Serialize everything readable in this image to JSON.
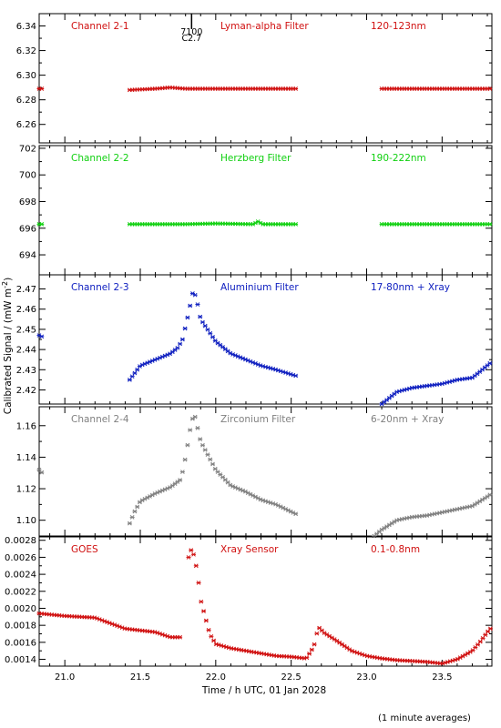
{
  "chart_data": {
    "type": "scatter",
    "ylabel": "Calibrated Signal / (mW m",
    "ylabel_sup": "-2",
    "ylabel_close": ")",
    "xlabel": "Time / h UTC, 01 Jan 2028",
    "footnote": "(1 minute averages)",
    "xlim": [
      20.83,
      23.83
    ],
    "xticks": [
      21.0,
      21.5,
      22.0,
      22.5,
      23.0,
      23.5
    ],
    "xtick_labels": [
      "21.0",
      "21.5",
      "22.0",
      "22.5",
      "23.0",
      "23.5"
    ],
    "flare_marker": {
      "x": 21.84,
      "label_top": "7100",
      "label_bottom": "C2.7"
    },
    "panels": [
      {
        "channel": "Channel 2-1",
        "filter": "Lyman-alpha Filter",
        "band": "120-123nm",
        "color": "#d01010",
        "ylim": [
          6.245,
          6.35
        ],
        "yticks": [
          6.26,
          6.28,
          6.3,
          6.32,
          6.34
        ],
        "ytick_labels": [
          "6.26",
          "6.28",
          "6.30",
          "6.32",
          "6.34"
        ],
        "segments": [
          {
            "x": [
              20.83,
              20.86
            ],
            "y": [
              6.289,
              6.289
            ]
          },
          {
            "x": [
              21.43,
              21.6,
              21.7,
              21.8,
              22.0,
              22.2,
              22.53
            ],
            "y": [
              6.288,
              6.289,
              6.29,
              6.289,
              6.289,
              6.289,
              6.289
            ]
          },
          {
            "x": [
              23.1,
              23.4,
              23.83
            ],
            "y": [
              6.289,
              6.289,
              6.289
            ]
          }
        ]
      },
      {
        "channel": "Channel 2-2",
        "filter": "Herzberg Filter",
        "band": "190-222nm",
        "color": "#10d010",
        "ylim": [
          692.5,
          702.2
        ],
        "yticks": [
          694,
          696,
          698,
          700,
          702
        ],
        "ytick_labels": [
          "694",
          "696",
          "698",
          "700",
          "702"
        ],
        "segments": [
          {
            "x": [
              20.83,
              20.86
            ],
            "y": [
              696.3,
              696.3
            ]
          },
          {
            "x": [
              21.43,
              21.8,
              22.0,
              22.25,
              22.28,
              22.31,
              22.53
            ],
            "y": [
              696.3,
              696.3,
              696.35,
              696.3,
              696.5,
              696.3,
              696.3
            ]
          },
          {
            "x": [
              23.1,
              23.5,
              23.83
            ],
            "y": [
              696.3,
              696.3,
              696.3
            ]
          }
        ]
      },
      {
        "channel": "Channel 2-3",
        "filter": "Aluminium Filter",
        "band": "17-80nm + Xray",
        "color": "#1020c0",
        "ylim": [
          2.413,
          2.477
        ],
        "yticks": [
          2.42,
          2.43,
          2.44,
          2.45,
          2.46,
          2.47
        ],
        "ytick_labels": [
          "2.42",
          "2.43",
          "2.44",
          "2.45",
          "2.46",
          "2.47"
        ],
        "segments": [
          {
            "x": [
              20.83,
              20.86
            ],
            "y": [
              2.447,
              2.446
            ]
          },
          {
            "x": [
              21.43,
              21.46,
              21.5,
              21.6,
              21.7,
              21.75,
              21.78,
              21.82,
              21.85,
              21.87,
              21.9,
              22.0,
              22.1,
              22.2,
              22.3,
              22.4,
              22.53
            ],
            "y": [
              2.425,
              2.428,
              2.432,
              2.435,
              2.438,
              2.441,
              2.445,
              2.458,
              2.469,
              2.466,
              2.455,
              2.444,
              2.438,
              2.435,
              2.432,
              2.43,
              2.427
            ]
          },
          {
            "x": [
              23.1,
              23.15,
              23.2,
              23.3,
              23.4,
              23.5,
              23.6,
              23.7,
              23.75,
              23.83
            ],
            "y": [
              2.413,
              2.416,
              2.419,
              2.421,
              2.422,
              2.423,
              2.425,
              2.426,
              2.429,
              2.434
            ]
          }
        ]
      },
      {
        "channel": "Channel 2-4",
        "filter": "Zirconium Filter",
        "band": "6-20nm + Xray",
        "color": "#808080",
        "ylim": [
          1.09,
          1.172
        ],
        "yticks": [
          1.1,
          1.12,
          1.14,
          1.16
        ],
        "ytick_labels": [
          "1.10",
          "1.12",
          "1.14",
          "1.16"
        ],
        "segments": [
          {
            "x": [
              20.83,
              20.86
            ],
            "y": [
              1.132,
              1.129
            ]
          },
          {
            "x": [
              21.43,
              21.46,
              21.5,
              21.6,
              21.7,
              21.77,
              21.8,
              21.84,
              21.86,
              21.9,
              22.0,
              22.1,
              22.2,
              22.3,
              22.4,
              22.53
            ],
            "y": [
              1.098,
              1.105,
              1.112,
              1.117,
              1.121,
              1.126,
              1.14,
              1.163,
              1.167,
              1.15,
              1.132,
              1.122,
              1.118,
              1.113,
              1.11,
              1.104
            ]
          },
          {
            "x": [
              23.05,
              23.1,
              23.15,
              23.2,
              23.3,
              23.4,
              23.5,
              23.6,
              23.7,
              23.8,
              23.83
            ],
            "y": [
              1.09,
              1.094,
              1.097,
              1.1,
              1.102,
              1.103,
              1.105,
              1.107,
              1.109,
              1.115,
              1.117
            ]
          }
        ]
      },
      {
        "channel": "GOES",
        "filter": "Xray Sensor",
        "band": "0.1-0.8nm",
        "color": "#d01010",
        "ylim": [
          0.00132,
          0.00284
        ],
        "yticks": [
          0.0014,
          0.0016,
          0.0018,
          0.002,
          0.0022,
          0.0024,
          0.0026,
          0.0028
        ],
        "ytick_labels": [
          "0.0014",
          "0.0016",
          "0.0018",
          "0.0020",
          "0.0022",
          "0.0024",
          "0.0026",
          "0.0028"
        ],
        "segments": [
          {
            "x": [
              20.83,
              21.0,
              21.2,
              21.4,
              21.5,
              21.6,
              21.7,
              21.77
            ],
            "y": [
              0.00194,
              0.00191,
              0.00189,
              0.00176,
              0.00174,
              0.00172,
              0.00166,
              0.00166
            ]
          },
          {
            "x": [
              21.82,
              21.84,
              21.86,
              21.88,
              21.9,
              21.93,
              21.96,
              22.0,
              22.1,
              22.2,
              22.3,
              22.4,
              22.5,
              22.6,
              22.65,
              22.68,
              22.72,
              22.8,
              22.9,
              23.0,
              23.1,
              23.2,
              23.3,
              23.4,
              23.5,
              23.6,
              23.7,
              23.75,
              23.8,
              23.83
            ],
            "y": [
              0.0026,
              0.0027,
              0.0026,
              0.0024,
              0.0021,
              0.0019,
              0.0017,
              0.00158,
              0.00153,
              0.0015,
              0.00147,
              0.00144,
              0.00143,
              0.00141,
              0.00155,
              0.00178,
              0.00171,
              0.00162,
              0.0015,
              0.00144,
              0.00141,
              0.00139,
              0.00138,
              0.00137,
              0.00135,
              0.0014,
              0.0015,
              0.0016,
              0.00172,
              0.00178
            ]
          }
        ]
      }
    ]
  }
}
